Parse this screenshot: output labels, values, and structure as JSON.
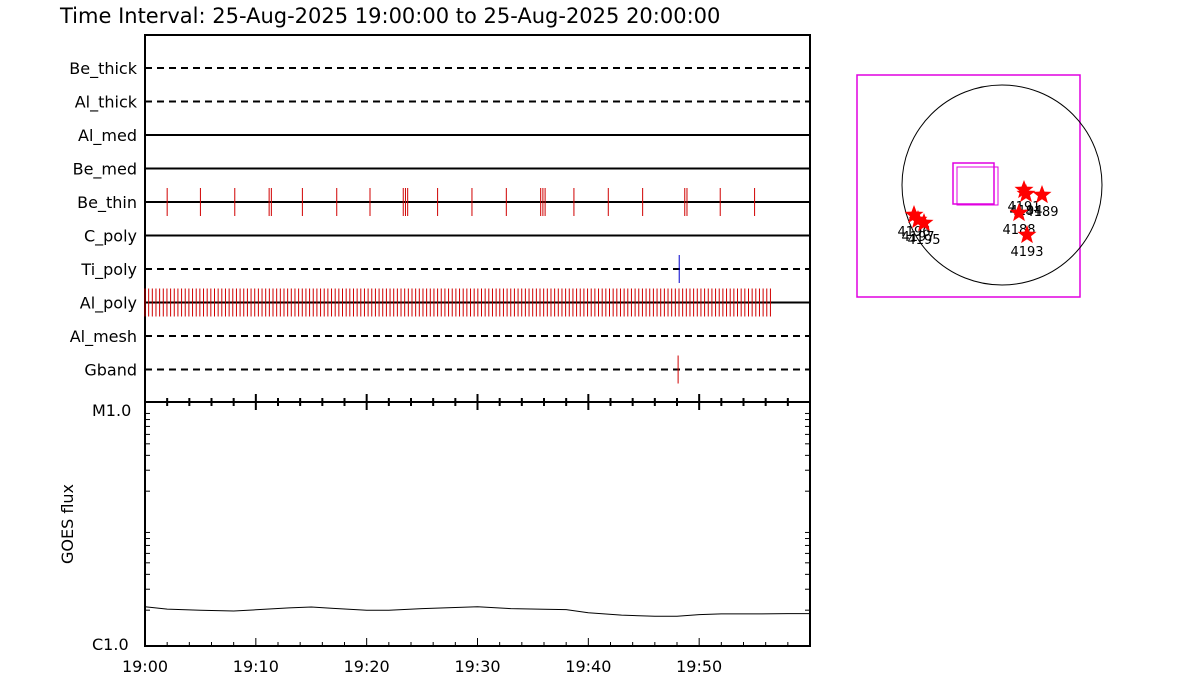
{
  "header": {
    "title": "Time Interval: 25-Aug-2025 19:00:00 to 25-Aug-2025 20:00:00"
  },
  "colors": {
    "event": "#d00000",
    "ti_poly_event": "#0000cc",
    "fov_box": "#e000e0",
    "marker": "#ff0000",
    "axis": "#000000"
  },
  "chart_data": [
    {
      "type": "timeline",
      "x": {
        "start": "19:00",
        "end": "20:00",
        "unit": "minutes",
        "tick_labels": [
          "19:00",
          "19:10",
          "19:20",
          "19:30",
          "19:40",
          "19:50"
        ]
      },
      "channels": [
        {
          "name": "Be_thick",
          "line": "dashed",
          "events": []
        },
        {
          "name": "Al_thick",
          "line": "dashed",
          "events": []
        },
        {
          "name": "Al_med",
          "line": "solid",
          "events": []
        },
        {
          "name": "Be_med",
          "line": "solid",
          "events": []
        },
        {
          "name": "Be_thin",
          "line": "solid",
          "events": [
            2.0,
            5.0,
            8.1,
            11.2,
            11.4,
            14.2,
            17.3,
            20.3,
            23.3,
            23.5,
            23.7,
            26.4,
            29.5,
            32.6,
            35.7,
            35.9,
            36.1,
            38.7,
            41.8,
            44.9,
            48.7,
            48.9,
            51.9,
            55.0
          ]
        },
        {
          "name": "C_poly",
          "line": "solid",
          "events": []
        },
        {
          "name": "Ti_poly",
          "line": "dashed",
          "events": [
            48.2
          ]
        },
        {
          "name": "Al_poly",
          "line": "solid",
          "events": "dense",
          "events_start": 0.0,
          "events_end": 56.7,
          "events_step": 0.33
        },
        {
          "name": "Al_mesh",
          "line": "dashed",
          "events": []
        },
        {
          "name": "Gband",
          "line": "dashed",
          "events": [
            48.1
          ]
        }
      ]
    },
    {
      "type": "line",
      "ylabel": "GOES flux",
      "y_scale": "log",
      "y_tick_labels": [
        "M1.0",
        "C1.0"
      ],
      "ylim": [
        "C1.0",
        "M1.0"
      ],
      "x": [
        0,
        2,
        5,
        8,
        10,
        13,
        15,
        17,
        20,
        22,
        25,
        27,
        30,
        33,
        36,
        38,
        40,
        43,
        46,
        48,
        50,
        52,
        55,
        58,
        60
      ],
      "values_log_fraction": [
        0.165,
        0.155,
        0.15,
        0.147,
        0.152,
        0.16,
        0.164,
        0.158,
        0.15,
        0.15,
        0.157,
        0.16,
        0.165,
        0.157,
        0.154,
        0.153,
        0.14,
        0.13,
        0.125,
        0.125,
        0.132,
        0.135,
        0.135,
        0.136,
        0.136
      ]
    },
    {
      "type": "scatter",
      "title": "",
      "regions": [
        {
          "label": "4191",
          "x": 0.22,
          "y": -0.05
        },
        {
          "label": "4194",
          "x": 0.24,
          "y": -0.09
        },
        {
          "label": "4189",
          "x": 0.4,
          "y": -0.1
        },
        {
          "label": "4188",
          "x": 0.17,
          "y": -0.28
        },
        {
          "label": "4193",
          "x": 0.25,
          "y": -0.5
        },
        {
          "label": "4196",
          "x": -0.88,
          "y": -0.3
        },
        {
          "label": "4197",
          "x": -0.84,
          "y": -0.35
        },
        {
          "label": "4195",
          "x": -0.78,
          "y": -0.38
        }
      ]
    }
  ]
}
